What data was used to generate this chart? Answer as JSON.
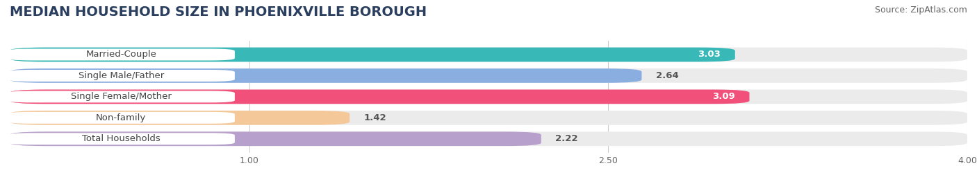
{
  "title": "MEDIAN HOUSEHOLD SIZE IN PHOENIXVILLE BOROUGH",
  "source": "Source: ZipAtlas.com",
  "categories": [
    "Married-Couple",
    "Single Male/Father",
    "Single Female/Mother",
    "Non-family",
    "Total Households"
  ],
  "values": [
    3.03,
    2.64,
    3.09,
    1.42,
    2.22
  ],
  "bar_colors": [
    "#39b8b8",
    "#8aaee0",
    "#f0507a",
    "#f5c89a",
    "#b8a0cc"
  ],
  "bar_bg_colors": [
    "#ebebeb",
    "#ebebeb",
    "#ebebeb",
    "#ebebeb",
    "#ebebeb"
  ],
  "value_inside": [
    true,
    false,
    true,
    false,
    false
  ],
  "xlim_min": 0.0,
  "xlim_max": 4.0,
  "xstart": 0.0,
  "xticks": [
    1.0,
    2.5,
    4.0
  ],
  "background_color": "#ffffff",
  "title_fontsize": 14,
  "source_fontsize": 9,
  "bar_label_fontsize": 9.5,
  "value_fontsize": 9.5,
  "bar_height": 0.68,
  "label_text_color": "#444444",
  "grid_color": "#cccccc"
}
